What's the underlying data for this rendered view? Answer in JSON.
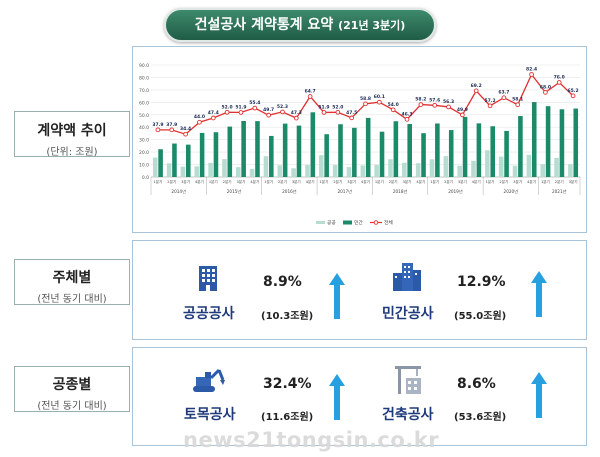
{
  "title": {
    "main": "건설공사 계약통계 요약",
    "sub": "(21년 3분기)"
  },
  "sections": {
    "trend": {
      "label": "계약액 추이",
      "note": "(단위: 조원)"
    },
    "by_entity": {
      "label": "주체별",
      "note": "(전년 동기 대비)"
    },
    "by_type": {
      "label": "공종별",
      "note": "(전년 동기 대비)"
    }
  },
  "stats": {
    "public": {
      "name": "공공공사",
      "pct": "8.9%",
      "amount": "(10.3조원)",
      "icon": "building-icon"
    },
    "private": {
      "name": "민간공사",
      "pct": "12.9%",
      "amount": "(55.0조원)",
      "icon": "city-buildings-icon"
    },
    "civil": {
      "name": "토목공사",
      "pct": "32.4%",
      "amount": "(11.6조원)",
      "icon": "excavator-icon"
    },
    "building": {
      "name": "건축공사",
      "pct": "8.6%",
      "amount": "(53.6조원)",
      "icon": "crane-building-icon"
    }
  },
  "colors": {
    "public": "#b7ddd2",
    "private": "#1a8a68",
    "total": "#e03030",
    "title_bg": "#2e7a5c",
    "stat_label": "#1f3a7a",
    "arrow": "#28a0e0"
  },
  "watermark": "news21tongsin.co.kr",
  "chart_data": {
    "type": "bar",
    "categories": [
      "1분기",
      "2분기",
      "3분기",
      "4분기",
      "1분기",
      "2분기",
      "3분기",
      "4분기",
      "1분기",
      "2분기",
      "3분기",
      "4분기",
      "1분기",
      "2분기",
      "3분기",
      "4분기",
      "1분기",
      "2분기",
      "3분기",
      "4분기",
      "1분기",
      "2분기",
      "3분기",
      "4분기",
      "1분기",
      "2분기",
      "3분기",
      "4분기",
      "1분기",
      "2분기",
      "3분기"
    ],
    "years": [
      {
        "label": "2014년",
        "count": 4
      },
      {
        "label": "2015년",
        "count": 4
      },
      {
        "label": "2016년",
        "count": 4
      },
      {
        "label": "2017년",
        "count": 4
      },
      {
        "label": "2018년",
        "count": 4
      },
      {
        "label": "2019년",
        "count": 4
      },
      {
        "label": "2020년",
        "count": 4
      },
      {
        "label": "2021년",
        "count": 3
      }
    ],
    "series": [
      {
        "name": "공공",
        "type": "bar",
        "values": [
          15.6,
          11.0,
          8.4,
          8.6,
          11.4,
          14.4,
          7.9,
          6.5,
          16.7,
          9.4,
          7.0,
          9.7,
          17.5,
          9.6,
          8.0,
          9.3,
          9.7,
          14.3,
          11.5,
          11.1,
          14.2,
          16.8,
          9.0,
          13.0,
          21.5,
          16.4,
          9.1,
          17.8,
          10.3,
          15.4,
          10.3
        ]
      },
      {
        "name": "민간",
        "type": "bar",
        "values": [
          22.3,
          26.9,
          26.0,
          35.4,
          36.0,
          40.5,
          45.0,
          44.9,
          33.0,
          42.9,
          41.3,
          52.0,
          34.4,
          42.4,
          39.5,
          47.5,
          36.4,
          44.8,
          42.6,
          35.2,
          43.0,
          37.7,
          48.3,
          43.1,
          40.8,
          37.0,
          49.0,
          60.2,
          56.9,
          54.4,
          55.0
        ]
      },
      {
        "name": "전체",
        "type": "line",
        "values": [
          37.9,
          37.9,
          34.4,
          44.0,
          47.4,
          52.0,
          51.9,
          55.4,
          49.7,
          52.3,
          47.3,
          64.7,
          51.9,
          52.0,
          47.5,
          58.8,
          60.1,
          54.0,
          46.3,
          58.2,
          57.6,
          56.3,
          49.9,
          69.2,
          57.2,
          63.7,
          58.1,
          82.4,
          68.0,
          76.0,
          65.2
        ]
      }
    ],
    "value_labels": [
      "37.9",
      "37.9",
      "34.4",
      "44.0",
      "47.4",
      "52.0",
      "51.9",
      "55.4",
      "49.7",
      "52.3",
      "47.3",
      "64.7",
      "51.9",
      "52.0",
      "47.5",
      "58.8",
      "60.1",
      "54.0",
      "46.3",
      "58.2",
      "57.6",
      "56.3",
      "49.9",
      "69.2",
      "57.2",
      "63.7",
      "58.1",
      "82.4",
      "68.0",
      "76.0",
      "65.2"
    ],
    "y_ticks": [
      "0.0",
      "10.0",
      "20.0",
      "30.0",
      "40.0",
      "50.0",
      "60.0",
      "70.0",
      "80.0",
      "90.0"
    ],
    "ylim": [
      0,
      90
    ],
    "grid": true,
    "legend": [
      "공공",
      "민간",
      "전체"
    ],
    "legend_position": "bottom"
  }
}
